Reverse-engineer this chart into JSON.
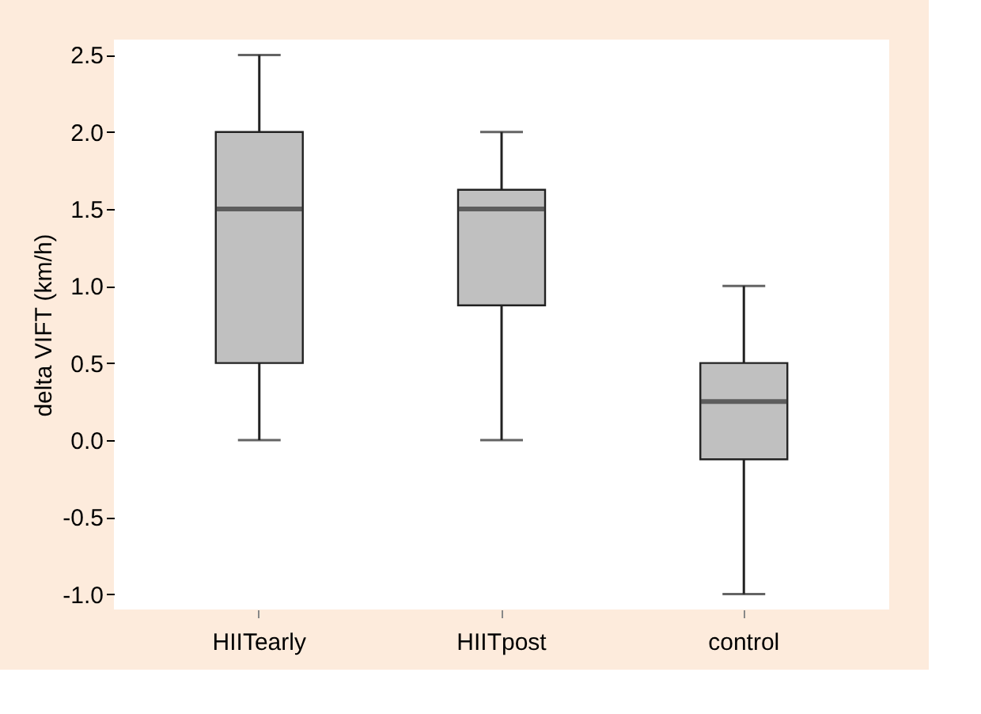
{
  "chart_data": {
    "type": "box",
    "ylabel": "delta VIFT (km/h)",
    "categories": [
      "HIITearly",
      "HIITpost",
      "control"
    ],
    "boxes": [
      {
        "low": 0,
        "q1": 0.5,
        "median": 1.5,
        "q3": 2.0,
        "high": 2.5
      },
      {
        "low": 0,
        "q1": 0.875,
        "median": 1.5,
        "q3": 1.625,
        "high": 2.0
      },
      {
        "low": -1.0,
        "q1": -0.125,
        "median": 0.25,
        "q3": 0.5,
        "high": 1.0
      }
    ],
    "color": "#c0c0c0",
    "ylim": [
      -1.1,
      2.6
    ],
    "yticks": [
      {
        "value": -1.0,
        "label": "-1.0"
      },
      {
        "value": -0.5,
        "label": "-0.5"
      },
      {
        "value": 0.0,
        "label": "0.0"
      },
      {
        "value": 0.5,
        "label": "0.5"
      },
      {
        "value": 1.0,
        "label": "1.0"
      },
      {
        "value": 1.5,
        "label": "1.5"
      },
      {
        "value": 2.0,
        "label": "2.0"
      },
      {
        "value": 2.5,
        "label": "2.5"
      }
    ],
    "grid": false
  }
}
